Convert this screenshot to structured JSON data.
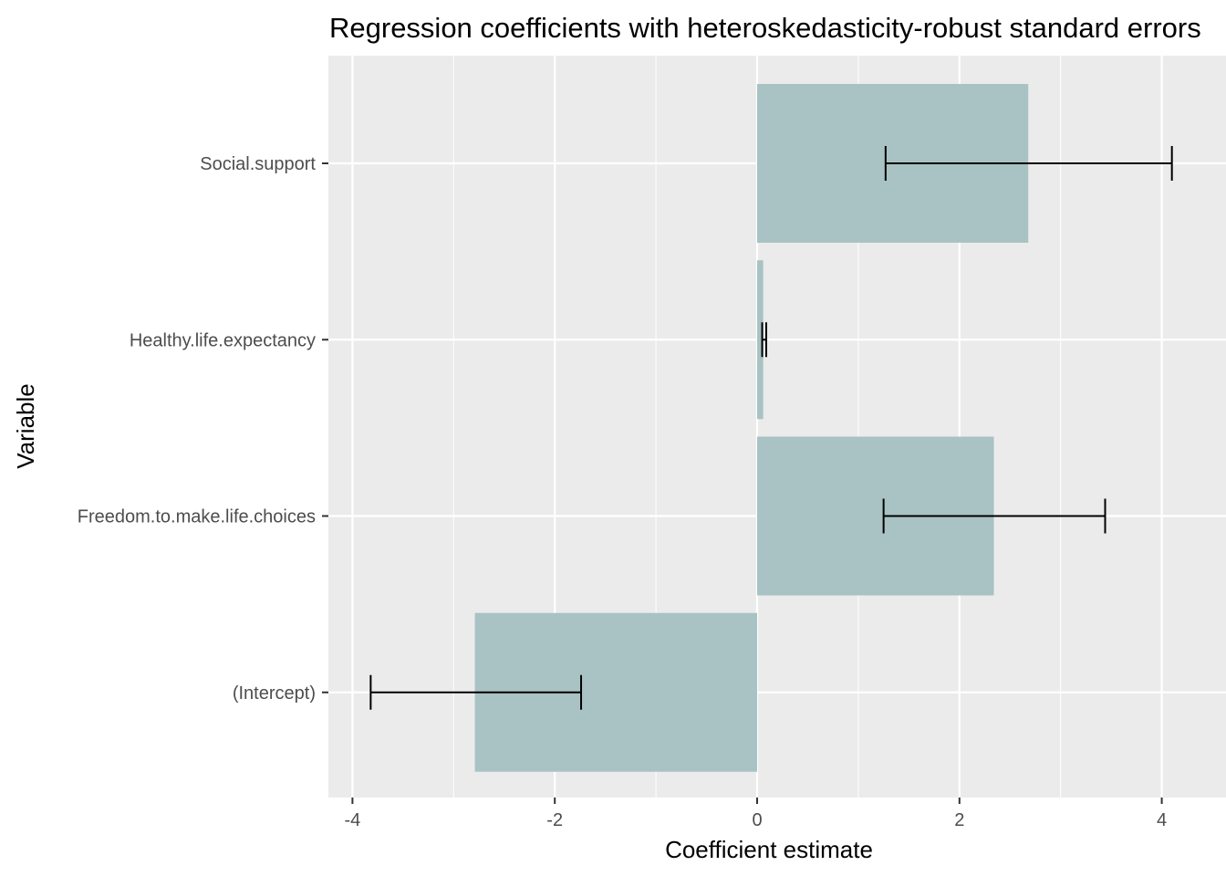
{
  "chart_data": {
    "type": "bar",
    "orientation": "horizontal",
    "title": "Regression coefficients with heteroskedasticity-robust standard errors",
    "xlabel": "Coefficient estimate",
    "ylabel": "Variable",
    "xlim": [
      -4.25,
      4.5
    ],
    "x_ticks": [
      -4,
      -2,
      0,
      2,
      4
    ],
    "x_tick_labels": [
      "-4",
      "-2",
      "0",
      "2",
      "4"
    ],
    "grid": true,
    "legend": "none",
    "categories": [
      "Social.support",
      "Healthy.life.expectancy",
      "Freedom.to.make.life.choices",
      "(Intercept)"
    ],
    "values": [
      2.68,
      0.06,
      2.34,
      -2.79
    ],
    "error_low": [
      1.27,
      0.05,
      1.25,
      -3.82
    ],
    "error_high": [
      4.1,
      0.09,
      3.44,
      -1.74
    ],
    "colors": {
      "bar": "#a9c2c3",
      "panel": "#ebebeb",
      "grid": "#ffffff",
      "errorbar": "#000000",
      "tick_label": "#4d4d4d"
    }
  }
}
